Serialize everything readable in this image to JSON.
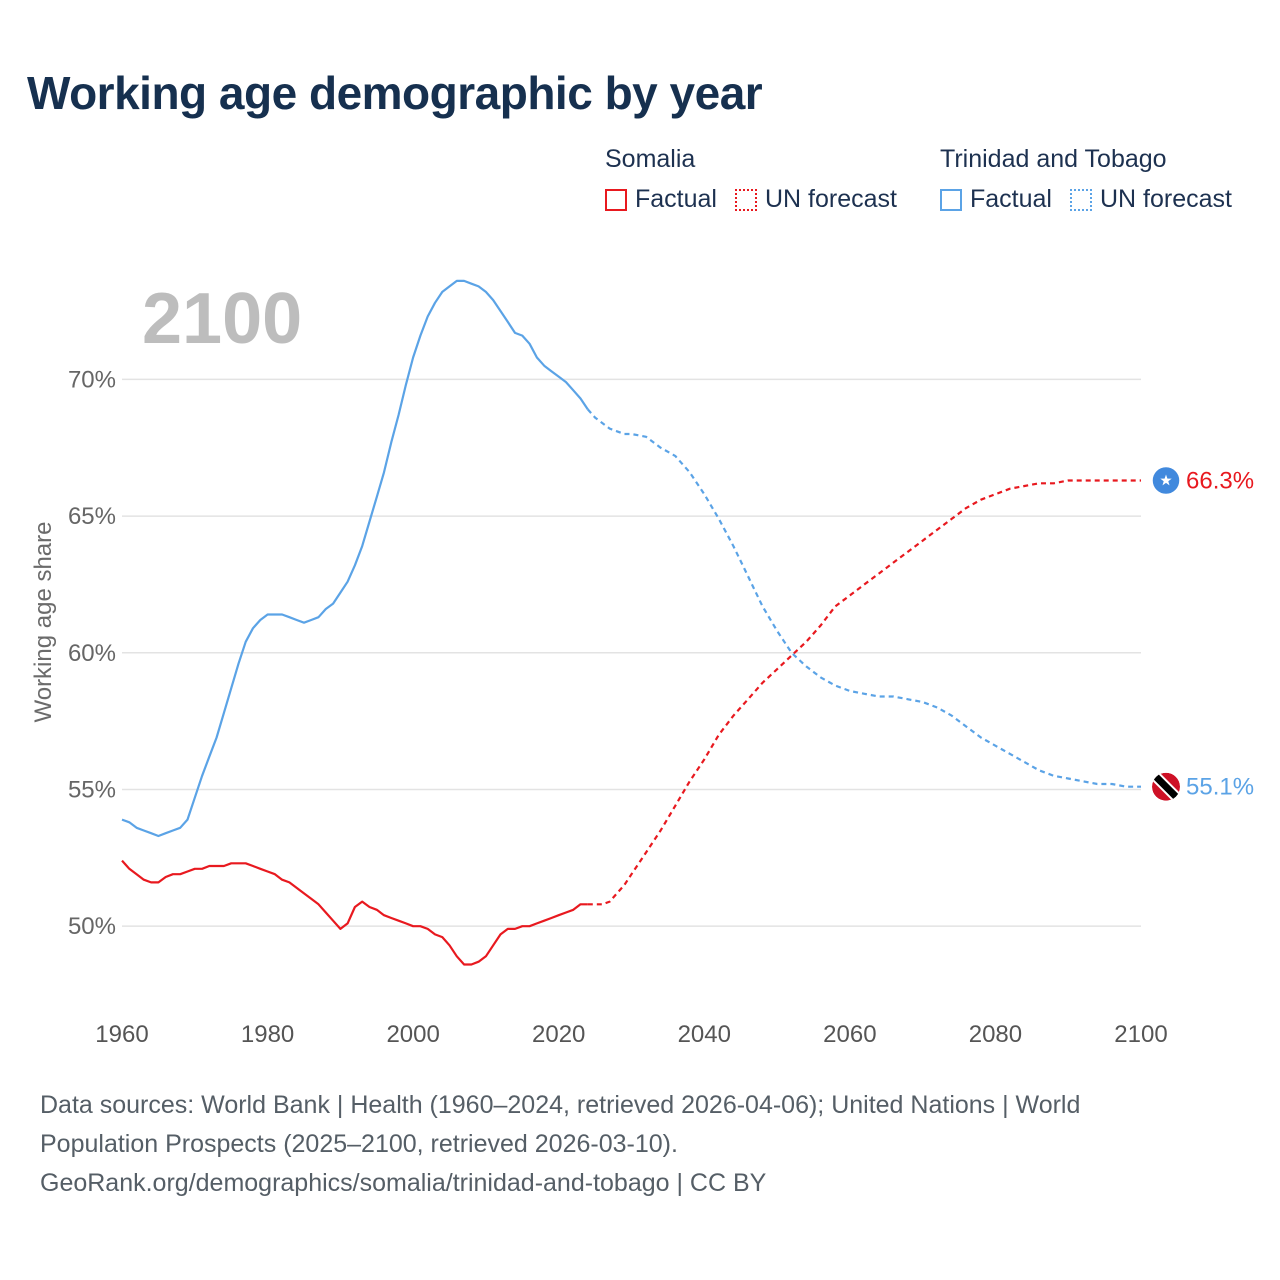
{
  "title": "Working age demographic by year",
  "legend": {
    "groups": [
      {
        "name": "Somalia",
        "color": "#e8191f",
        "factual_label": "Factual",
        "forecast_label": "UN forecast"
      },
      {
        "name": "Trinidad and Tobago",
        "color": "#5ba3e6",
        "factual_label": "Factual",
        "forecast_label": "UN forecast"
      }
    ]
  },
  "year_overlay": "2100",
  "footer": {
    "line1": "Data sources: World Bank | Health (1960–2024, retrieved 2026-04-06); United Nations | World",
    "line2": "Population Prospects (2025–2100, retrieved 2026-03-10).",
    "line3": "GeoRank.org/demographics/somalia/trinidad-and-tobago | CC BY"
  },
  "chart_data": {
    "type": "line",
    "ylabel": "Working age share",
    "xlabel": "",
    "xlim": [
      1960,
      2100
    ],
    "ylim": [
      47.3,
      74
    ],
    "x_ticks": [
      1960,
      1980,
      2000,
      2020,
      2040,
      2060,
      2080,
      2100
    ],
    "y_ticks": [
      50,
      55,
      60,
      65,
      70
    ],
    "y_tick_labels": [
      "50%",
      "55%",
      "60%",
      "65%",
      "70%"
    ],
    "grid": true,
    "factual_end_year": 2024,
    "series": [
      {
        "name": "Somalia",
        "color": "#e8191f",
        "end_label": "66.3%",
        "end_icon": "somalia-flag-icon",
        "points": [
          [
            1960,
            52.4
          ],
          [
            1961,
            52.1
          ],
          [
            1962,
            51.9
          ],
          [
            1963,
            51.7
          ],
          [
            1964,
            51.6
          ],
          [
            1965,
            51.6
          ],
          [
            1966,
            51.8
          ],
          [
            1967,
            51.9
          ],
          [
            1968,
            51.9
          ],
          [
            1969,
            52.0
          ],
          [
            1970,
            52.1
          ],
          [
            1971,
            52.1
          ],
          [
            1972,
            52.2
          ],
          [
            1973,
            52.2
          ],
          [
            1974,
            52.2
          ],
          [
            1975,
            52.3
          ],
          [
            1976,
            52.3
          ],
          [
            1977,
            52.3
          ],
          [
            1978,
            52.2
          ],
          [
            1979,
            52.1
          ],
          [
            1980,
            52.0
          ],
          [
            1981,
            51.9
          ],
          [
            1982,
            51.7
          ],
          [
            1983,
            51.6
          ],
          [
            1984,
            51.4
          ],
          [
            1985,
            51.2
          ],
          [
            1986,
            51.0
          ],
          [
            1987,
            50.8
          ],
          [
            1988,
            50.5
          ],
          [
            1989,
            50.2
          ],
          [
            1990,
            49.9
          ],
          [
            1991,
            50.1
          ],
          [
            1992,
            50.7
          ],
          [
            1993,
            50.9
          ],
          [
            1994,
            50.7
          ],
          [
            1995,
            50.6
          ],
          [
            1996,
            50.4
          ],
          [
            1997,
            50.3
          ],
          [
            1998,
            50.2
          ],
          [
            1999,
            50.1
          ],
          [
            2000,
            50.0
          ],
          [
            2001,
            50.0
          ],
          [
            2002,
            49.9
          ],
          [
            2003,
            49.7
          ],
          [
            2004,
            49.6
          ],
          [
            2005,
            49.3
          ],
          [
            2006,
            48.9
          ],
          [
            2007,
            48.6
          ],
          [
            2008,
            48.6
          ],
          [
            2009,
            48.7
          ],
          [
            2010,
            48.9
          ],
          [
            2011,
            49.3
          ],
          [
            2012,
            49.7
          ],
          [
            2013,
            49.9
          ],
          [
            2014,
            49.9
          ],
          [
            2015,
            50.0
          ],
          [
            2016,
            50.0
          ],
          [
            2017,
            50.1
          ],
          [
            2018,
            50.2
          ],
          [
            2019,
            50.3
          ],
          [
            2020,
            50.4
          ],
          [
            2021,
            50.5
          ],
          [
            2022,
            50.6
          ],
          [
            2023,
            50.8
          ],
          [
            2024,
            50.8
          ],
          [
            2025,
            50.8
          ],
          [
            2026,
            50.8
          ],
          [
            2027,
            50.9
          ],
          [
            2028,
            51.2
          ],
          [
            2029,
            51.5
          ],
          [
            2030,
            51.9
          ],
          [
            2032,
            52.7
          ],
          [
            2034,
            53.5
          ],
          [
            2036,
            54.4
          ],
          [
            2038,
            55.3
          ],
          [
            2040,
            56.1
          ],
          [
            2042,
            57.0
          ],
          [
            2044,
            57.7
          ],
          [
            2046,
            58.3
          ],
          [
            2048,
            58.9
          ],
          [
            2050,
            59.4
          ],
          [
            2052,
            59.9
          ],
          [
            2054,
            60.4
          ],
          [
            2056,
            61.0
          ],
          [
            2058,
            61.7
          ],
          [
            2060,
            62.1
          ],
          [
            2062,
            62.5
          ],
          [
            2064,
            62.9
          ],
          [
            2066,
            63.3
          ],
          [
            2068,
            63.7
          ],
          [
            2070,
            64.1
          ],
          [
            2072,
            64.5
          ],
          [
            2074,
            64.9
          ],
          [
            2076,
            65.3
          ],
          [
            2078,
            65.6
          ],
          [
            2080,
            65.8
          ],
          [
            2082,
            66.0
          ],
          [
            2084,
            66.1
          ],
          [
            2086,
            66.2
          ],
          [
            2088,
            66.2
          ],
          [
            2090,
            66.3
          ],
          [
            2095,
            66.3
          ],
          [
            2100,
            66.3
          ]
        ]
      },
      {
        "name": "Trinidad and Tobago",
        "color": "#5ba3e6",
        "end_label": "55.1%",
        "end_icon": "trinidad-and-tobago-flag-icon",
        "points": [
          [
            1960,
            53.9
          ],
          [
            1961,
            53.8
          ],
          [
            1962,
            53.6
          ],
          [
            1963,
            53.5
          ],
          [
            1964,
            53.4
          ],
          [
            1965,
            53.3
          ],
          [
            1966,
            53.4
          ],
          [
            1967,
            53.5
          ],
          [
            1968,
            53.6
          ],
          [
            1969,
            53.9
          ],
          [
            1970,
            54.7
          ],
          [
            1971,
            55.5
          ],
          [
            1972,
            56.2
          ],
          [
            1973,
            56.9
          ],
          [
            1974,
            57.8
          ],
          [
            1975,
            58.7
          ],
          [
            1976,
            59.6
          ],
          [
            1977,
            60.4
          ],
          [
            1978,
            60.9
          ],
          [
            1979,
            61.2
          ],
          [
            1980,
            61.4
          ],
          [
            1981,
            61.4
          ],
          [
            1982,
            61.4
          ],
          [
            1983,
            61.3
          ],
          [
            1984,
            61.2
          ],
          [
            1985,
            61.1
          ],
          [
            1986,
            61.2
          ],
          [
            1987,
            61.3
          ],
          [
            1988,
            61.6
          ],
          [
            1989,
            61.8
          ],
          [
            1990,
            62.2
          ],
          [
            1991,
            62.6
          ],
          [
            1992,
            63.2
          ],
          [
            1993,
            63.9
          ],
          [
            1994,
            64.8
          ],
          [
            1995,
            65.7
          ],
          [
            1996,
            66.6
          ],
          [
            1997,
            67.7
          ],
          [
            1998,
            68.7
          ],
          [
            1999,
            69.8
          ],
          [
            2000,
            70.8
          ],
          [
            2001,
            71.6
          ],
          [
            2002,
            72.3
          ],
          [
            2003,
            72.8
          ],
          [
            2004,
            73.2
          ],
          [
            2005,
            73.4
          ],
          [
            2006,
            73.6
          ],
          [
            2007,
            73.6
          ],
          [
            2008,
            73.5
          ],
          [
            2009,
            73.4
          ],
          [
            2010,
            73.2
          ],
          [
            2011,
            72.9
          ],
          [
            2012,
            72.5
          ],
          [
            2013,
            72.1
          ],
          [
            2014,
            71.7
          ],
          [
            2015,
            71.6
          ],
          [
            2016,
            71.3
          ],
          [
            2017,
            70.8
          ],
          [
            2018,
            70.5
          ],
          [
            2019,
            70.3
          ],
          [
            2020,
            70.1
          ],
          [
            2021,
            69.9
          ],
          [
            2022,
            69.6
          ],
          [
            2023,
            69.3
          ],
          [
            2024,
            68.9
          ],
          [
            2025,
            68.6
          ],
          [
            2026,
            68.4
          ],
          [
            2027,
            68.2
          ],
          [
            2028,
            68.1
          ],
          [
            2029,
            68.0
          ],
          [
            2030,
            68.0
          ],
          [
            2032,
            67.9
          ],
          [
            2034,
            67.5
          ],
          [
            2036,
            67.2
          ],
          [
            2038,
            66.6
          ],
          [
            2040,
            65.8
          ],
          [
            2042,
            64.9
          ],
          [
            2044,
            63.9
          ],
          [
            2046,
            62.8
          ],
          [
            2048,
            61.7
          ],
          [
            2050,
            60.8
          ],
          [
            2052,
            60.0
          ],
          [
            2054,
            59.5
          ],
          [
            2056,
            59.1
          ],
          [
            2058,
            58.8
          ],
          [
            2060,
            58.6
          ],
          [
            2062,
            58.5
          ],
          [
            2064,
            58.4
          ],
          [
            2066,
            58.4
          ],
          [
            2068,
            58.3
          ],
          [
            2070,
            58.2
          ],
          [
            2072,
            58.0
          ],
          [
            2074,
            57.7
          ],
          [
            2076,
            57.3
          ],
          [
            2078,
            56.9
          ],
          [
            2080,
            56.6
          ],
          [
            2082,
            56.3
          ],
          [
            2084,
            56.0
          ],
          [
            2086,
            55.7
          ],
          [
            2088,
            55.5
          ],
          [
            2090,
            55.4
          ],
          [
            2092,
            55.3
          ],
          [
            2094,
            55.2
          ],
          [
            2096,
            55.2
          ],
          [
            2098,
            55.1
          ],
          [
            2100,
            55.1
          ]
        ]
      }
    ]
  }
}
